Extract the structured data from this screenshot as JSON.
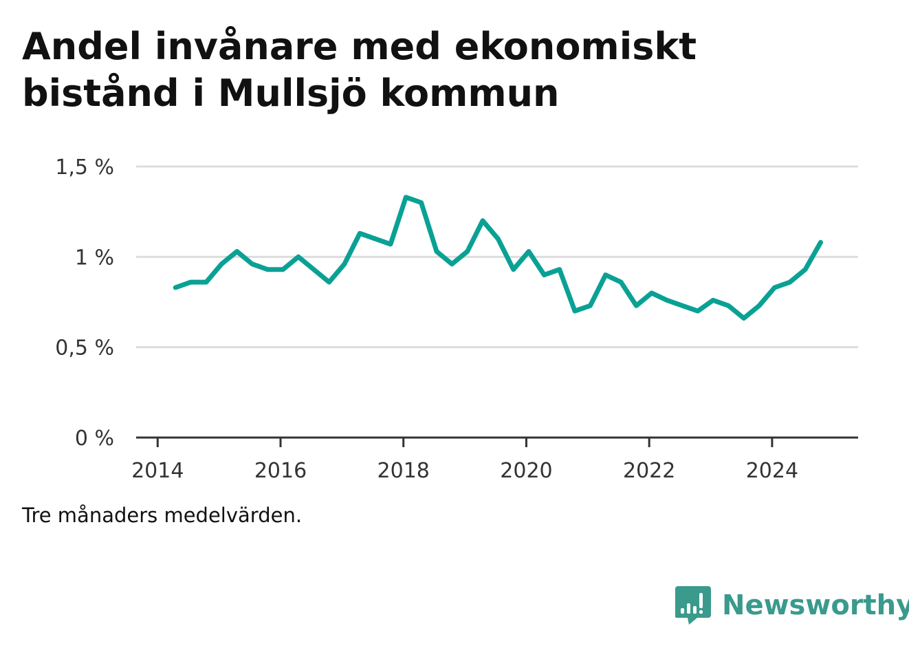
{
  "title_lines": [
    "Andel invånare med ekonomiskt",
    "bistånd i Mullsjö kommun"
  ],
  "note": "Tre månaders medelvärden.",
  "brand": {
    "name": "Newsworthy",
    "icon": "newsworthy-chart-bubble-icon",
    "color": "#3a9a8c"
  },
  "colors": {
    "line": "#0aa195",
    "grid": "#dddddd",
    "axis": "#333333"
  },
  "chart_data": {
    "type": "line",
    "title": "Andel invånare med ekonomiskt bistånd i Mullsjö kommun",
    "xlabel": "",
    "ylabel": "",
    "xlim": [
      2013.65,
      2025.4
    ],
    "ylim": [
      0,
      1.5
    ],
    "yticks": [
      {
        "value": 0,
        "label": "0 %"
      },
      {
        "value": 0.5,
        "label": "0,5 %"
      },
      {
        "value": 1,
        "label": "1 %"
      },
      {
        "value": 1.5,
        "label": "1,5 %"
      }
    ],
    "xticks": [
      {
        "value": 2014,
        "label": "2014"
      },
      {
        "value": 2016,
        "label": "2016"
      },
      {
        "value": 2018,
        "label": "2018"
      },
      {
        "value": 2020,
        "label": "2020"
      },
      {
        "value": 2022,
        "label": "2022"
      },
      {
        "value": 2024,
        "label": "2024"
      }
    ],
    "grid": true,
    "series": [
      {
        "x": [
          2014.29,
          2014.54,
          2014.79,
          2015.04,
          2015.29,
          2015.54,
          2015.79,
          2016.04,
          2016.29,
          2016.54,
          2016.79,
          2017.04,
          2017.29,
          2017.54,
          2017.79,
          2018.04,
          2018.29,
          2018.54,
          2018.79,
          2019.04,
          2019.29,
          2019.54,
          2019.79,
          2020.04,
          2020.29,
          2020.54,
          2020.79,
          2021.04,
          2021.29,
          2021.54,
          2021.79,
          2022.04,
          2022.29,
          2022.54,
          2022.79,
          2023.04,
          2023.29,
          2023.54,
          2023.79,
          2024.04,
          2024.29,
          2024.54,
          2024.79
        ],
        "y": [
          0.83,
          0.86,
          0.86,
          0.96,
          1.03,
          0.96,
          0.93,
          0.93,
          1.0,
          0.93,
          0.86,
          0.96,
          1.13,
          1.1,
          1.07,
          1.33,
          1.3,
          1.03,
          0.96,
          1.03,
          1.2,
          1.1,
          0.93,
          1.03,
          0.9,
          0.93,
          0.7,
          0.73,
          0.9,
          0.86,
          0.73,
          0.8,
          0.76,
          0.73,
          0.7,
          0.76,
          0.73,
          0.66,
          0.73,
          0.83,
          0.86,
          0.93,
          1.08
        ]
      }
    ]
  }
}
